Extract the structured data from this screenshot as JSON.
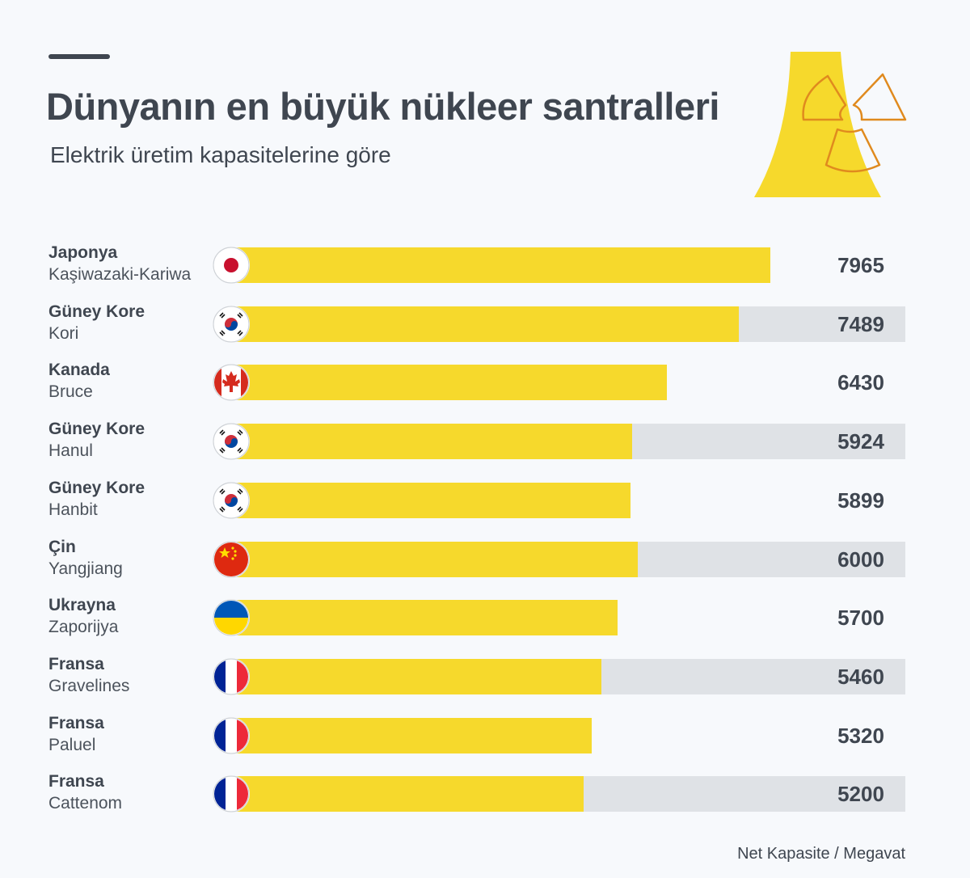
{
  "header": {
    "title": "Dünyanın en büyük nükleer santralleri",
    "subtitle": "Elektrik üretim kapasitelerine göre"
  },
  "footnote": "Net Kapasite / Megavat",
  "colors": {
    "bar": "#f6d92c",
    "row_band": "#dfe2e6",
    "text": "#3f4650",
    "accent": "#e08a1e"
  },
  "chart_data": {
    "type": "bar",
    "orientation": "horizontal",
    "categories": [
      "Japonya Kaşiwazaki-Kariwa",
      "Güney Kore Kori",
      "Kanada Bruce",
      "Güney Kore Hanul",
      "Güney Kore Hanbit",
      "Çin Yangjiang",
      "Ukrayna Zaporijya",
      "Fransa Gravelines",
      "Fransa Paluel",
      "Fransa Cattenom"
    ],
    "values": [
      7965,
      7489,
      6430,
      5924,
      5899,
      6000,
      5700,
      5460,
      5320,
      5200
    ],
    "rows": [
      {
        "country": "Japonya",
        "plant": "Kaşiwazaki-Kariwa",
        "value": 7965,
        "flag": "japan-flag-icon"
      },
      {
        "country": "Güney Kore",
        "plant": "Kori",
        "value": 7489,
        "flag": "south-korea-flag-icon"
      },
      {
        "country": "Kanada",
        "plant": "Bruce",
        "value": 6430,
        "flag": "canada-flag-icon"
      },
      {
        "country": "Güney Kore",
        "plant": "Hanul",
        "value": 5924,
        "flag": "south-korea-flag-icon"
      },
      {
        "country": "Güney Kore",
        "plant": "Hanbit",
        "value": 5899,
        "flag": "south-korea-flag-icon"
      },
      {
        "country": "Çin",
        "plant": "Yangjiang",
        "value": 6000,
        "flag": "china-flag-icon"
      },
      {
        "country": "Ukrayna",
        "plant": "Zaporijya",
        "value": 5700,
        "flag": "ukraine-flag-icon"
      },
      {
        "country": "Fransa",
        "plant": "Gravelines",
        "value": 5460,
        "flag": "france-flag-icon"
      },
      {
        "country": "Fransa",
        "plant": "Paluel",
        "value": 5320,
        "flag": "france-flag-icon"
      },
      {
        "country": "Fransa",
        "plant": "Cattenom",
        "value": 5200,
        "flag": "france-flag-icon"
      }
    ],
    "xlim": [
      0,
      8500
    ],
    "grid": false,
    "legend": "none"
  }
}
